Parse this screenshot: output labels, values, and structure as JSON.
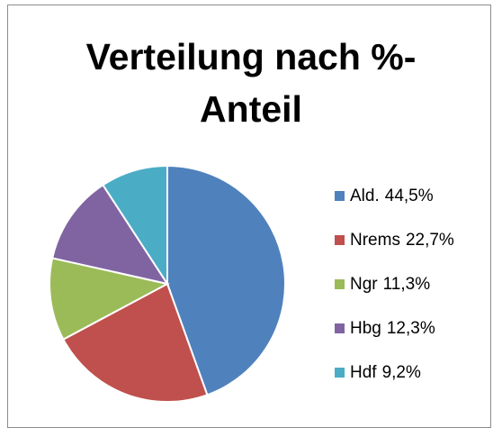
{
  "chart_data": {
    "type": "pie",
    "title": "Verteilung nach %-Anteil",
    "categories": [
      "Ald.",
      "Nrems",
      "Ngr",
      "Hbg",
      "Hdf"
    ],
    "values": [
      44.5,
      22.7,
      11.3,
      12.3,
      9.2
    ],
    "value_labels": [
      "44,5%",
      "22,7%",
      "11,3%",
      "12,3%",
      "9,2%"
    ],
    "colors": [
      "#4f81bd",
      "#c0504d",
      "#9bbb59",
      "#8064a2",
      "#4bacc6"
    ],
    "legend": "right"
  }
}
